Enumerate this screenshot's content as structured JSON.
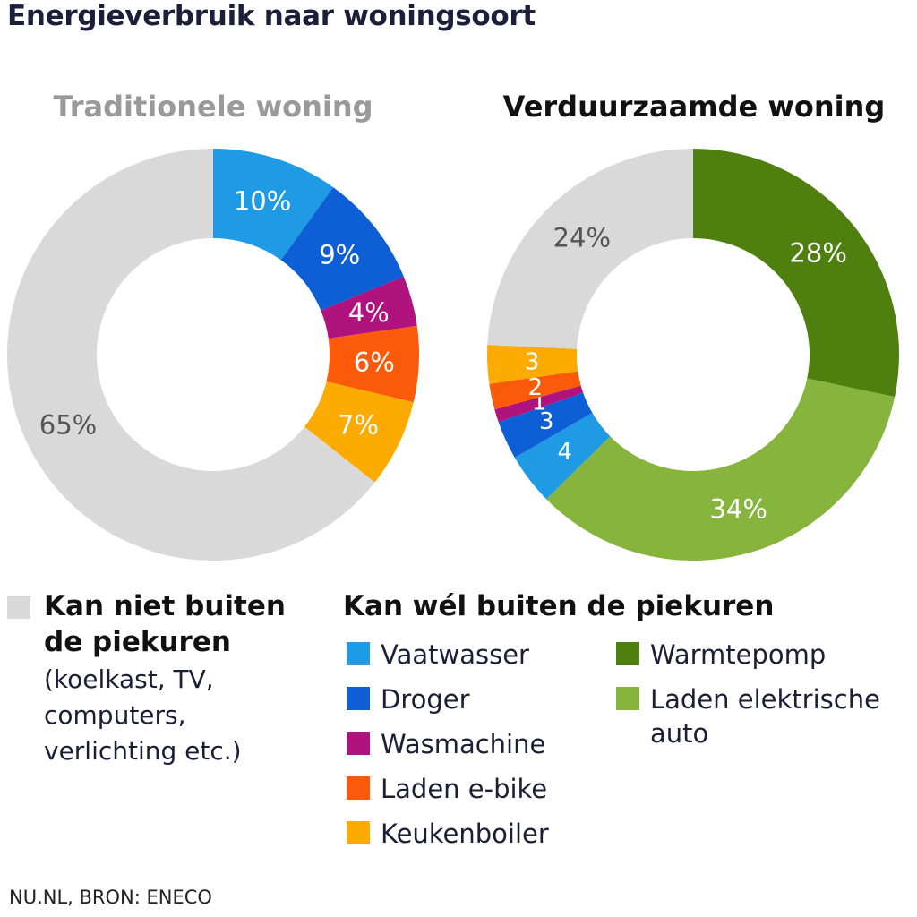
{
  "title": "Energieverbruik naar woningsoort",
  "source": "NU.NL, BRON: ENECO",
  "colors": {
    "gray": "#d9d9d9",
    "vaatwasser": "#1f9be6",
    "droger": "#0e5fd6",
    "wasmachine": "#b0127e",
    "ebike": "#fa5a0a",
    "keukenboiler": "#fdab00",
    "warmtepomp": "#4f7f0f",
    "auto": "#86b43c"
  },
  "legend": {
    "gray_heading": "Kan niet buiten de piekuren",
    "gray_heading_line1": "Kan niet buiten",
    "gray_heading_line2": "de piekuren",
    "gray_desc_line1": "(koelkast, TV,",
    "gray_desc_line2": "computers,",
    "gray_desc_line3": "verlichting etc.)",
    "offpeak_heading": "Kan wél buiten de piekuren",
    "items_left": [
      {
        "label": "Vaatwasser",
        "color_key": "vaatwasser"
      },
      {
        "label": "Droger",
        "color_key": "droger"
      },
      {
        "label": "Wasmachine",
        "color_key": "wasmachine"
      },
      {
        "label": "Laden e-bike",
        "color_key": "ebike"
      },
      {
        "label": "Keukenboiler",
        "color_key": "keukenboiler"
      }
    ],
    "items_right": [
      {
        "label": "Warmtepomp",
        "color_key": "warmtepomp"
      },
      {
        "label": "Laden elektrische auto",
        "line1": "Laden elektrische",
        "line2": "auto",
        "color_key": "auto"
      }
    ]
  },
  "chart_data": [
    {
      "type": "pie",
      "title": "Traditionele woning",
      "slices": [
        {
          "name": "Vaatwasser",
          "value": 10,
          "label": "10%",
          "color_key": "vaatwasser"
        },
        {
          "name": "Droger",
          "value": 9,
          "label": "9%",
          "color_key": "droger"
        },
        {
          "name": "Wasmachine",
          "value": 4,
          "label": "4%",
          "color_key": "wasmachine"
        },
        {
          "name": "Laden e-bike",
          "value": 6,
          "label": "6%",
          "color_key": "ebike"
        },
        {
          "name": "Keukenboiler",
          "value": 7,
          "label": "7%",
          "color_key": "keukenboiler"
        },
        {
          "name": "Kan niet buiten de piekuren",
          "value": 65,
          "label": "65%",
          "color_key": "gray"
        }
      ]
    },
    {
      "type": "pie",
      "title": "Verduurzaamde woning",
      "slices": [
        {
          "name": "Warmtepomp",
          "value": 28,
          "label": "28%",
          "color_key": "warmtepomp"
        },
        {
          "name": "Laden elektrische auto",
          "value": 34,
          "label": "34%",
          "color_key": "auto"
        },
        {
          "name": "Vaatwasser",
          "value": 4,
          "label": "4",
          "color_key": "vaatwasser"
        },
        {
          "name": "Droger",
          "value": 3,
          "label": "3",
          "color_key": "droger"
        },
        {
          "name": "Wasmachine",
          "value": 1,
          "label": "1",
          "color_key": "wasmachine"
        },
        {
          "name": "Laden e-bike",
          "value": 2,
          "label": "2",
          "color_key": "ebike"
        },
        {
          "name": "Keukenboiler",
          "value": 3,
          "label": "3",
          "color_key": "keukenboiler"
        },
        {
          "name": "Kan niet buiten de piekuren",
          "value": 24,
          "label": "24%",
          "color_key": "gray"
        }
      ]
    }
  ]
}
